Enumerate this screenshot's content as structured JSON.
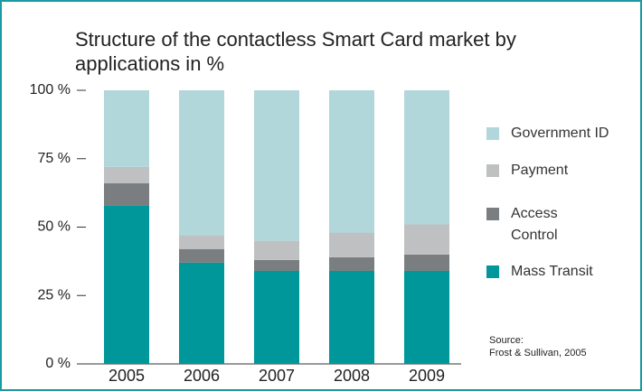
{
  "chart_data": {
    "type": "stacked_bar",
    "title": "Structure of the contactless Smart Card market by applications in %",
    "categories": [
      "2005",
      "2006",
      "2007",
      "2008",
      "2009"
    ],
    "series": [
      {
        "name": "Mass Transit",
        "color": "#00979a",
        "values": [
          58,
          37,
          34,
          34,
          34
        ]
      },
      {
        "name": "Access Control",
        "color": "#7b7e80",
        "values": [
          8,
          5,
          4,
          5,
          6
        ]
      },
      {
        "name": "Payment",
        "color": "#bfc0c1",
        "values": [
          6,
          5,
          7,
          9,
          11
        ]
      },
      {
        "name": "Government ID",
        "color": "#b1d7db",
        "values": [
          28,
          53,
          55,
          52,
          49
        ]
      }
    ],
    "ylim": [
      0,
      100
    ],
    "yticks": [
      {
        "value": 0,
        "label": "0 %"
      },
      {
        "value": 25,
        "label": "25 %"
      },
      {
        "value": 50,
        "label": "50 %"
      },
      {
        "value": 75,
        "label": "75 %"
      },
      {
        "value": 100,
        "label": "100 %"
      }
    ],
    "source": [
      "Source:",
      "Frost & Sullivan, 2005"
    ]
  }
}
